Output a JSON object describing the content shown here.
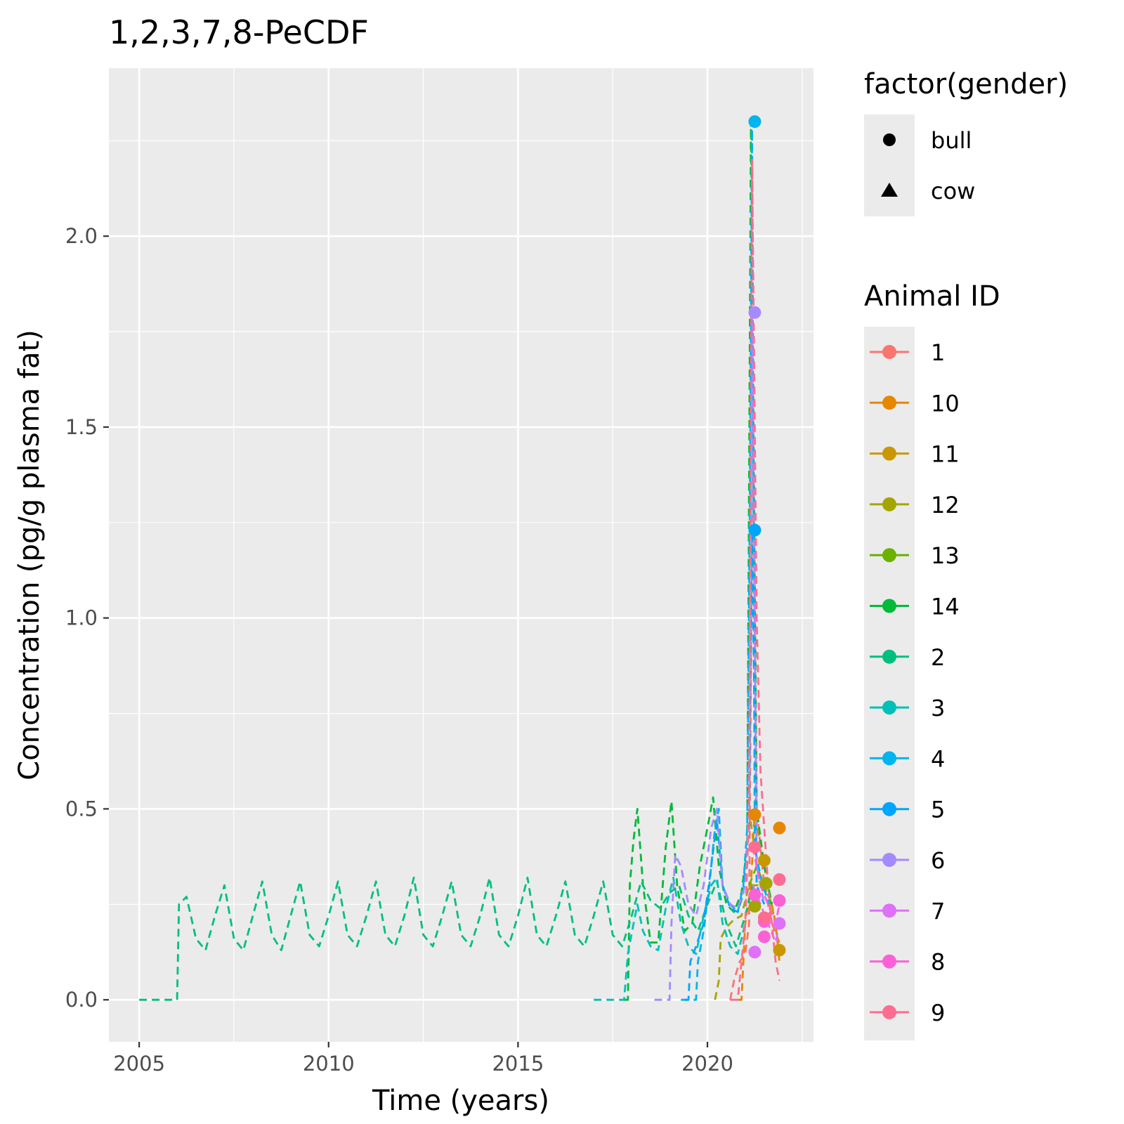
{
  "chart_data": {
    "type": "line",
    "title": "1,2,3,7,8-PeCDF",
    "xlabel": "Time (years)",
    "ylabel": "Concentration (pg/g plasma fat)",
    "xlim": [
      2004.2,
      2022.8
    ],
    "ylim": [
      -0.11,
      2.44
    ],
    "x_ticks": [
      2005,
      2010,
      2015,
      2020
    ],
    "y_ticks": [
      0.0,
      0.5,
      1.0,
      1.5,
      2.0
    ],
    "x_tick_labels": [
      "2005",
      "2010",
      "2015",
      "2020"
    ],
    "y_tick_labels": [
      "0.0",
      "0.5",
      "1.0",
      "1.5",
      "2.0"
    ],
    "grid": true,
    "legend_position": "right",
    "shape_legend": {
      "title": "factor(gender)",
      "items": [
        {
          "label": "bull",
          "shape": "circle"
        },
        {
          "label": "cow",
          "shape": "triangle"
        }
      ]
    },
    "series": [
      {
        "name": "1",
        "color": "#F8766D",
        "line": [
          [
            2020.6,
            0.0
          ],
          [
            2020.7,
            0.05
          ],
          [
            2020.85,
            0.1
          ],
          [
            2021.0,
            0.12
          ],
          [
            2021.1,
            0.2
          ],
          [
            2021.2,
            1.6
          ],
          [
            2021.3,
            0.5
          ],
          [
            2021.5,
            0.3
          ],
          [
            2021.7,
            0.2
          ],
          [
            2021.9,
            0.15
          ]
        ],
        "points": []
      },
      {
        "name": "10",
        "color": "#E58700",
        "line": [
          [
            2020.8,
            0.0
          ],
          [
            2020.9,
            0.0
          ],
          [
            2021.0,
            0.2
          ],
          [
            2021.15,
            0.3
          ],
          [
            2021.25,
            0.5
          ],
          [
            2021.4,
            0.4
          ],
          [
            2021.6,
            0.3
          ],
          [
            2021.8,
            0.2
          ],
          [
            2021.9,
            0.1
          ]
        ],
        "points": [
          [
            2021.25,
            0.485
          ],
          [
            2021.9,
            0.45
          ]
        ]
      },
      {
        "name": "11",
        "color": "#C99800",
        "line": [
          [
            2021.1,
            0.5
          ],
          [
            2021.3,
            0.35
          ],
          [
            2021.5,
            0.3
          ],
          [
            2021.7,
            0.25
          ],
          [
            2021.9,
            0.13
          ]
        ],
        "points": [
          [
            2021.5,
            0.365
          ],
          [
            2021.9,
            0.13
          ]
        ]
      },
      {
        "name": "12",
        "color": "#A3A500",
        "line": [
          [
            2020.2,
            0.0
          ],
          [
            2020.3,
            0.05
          ],
          [
            2020.35,
            0.16
          ],
          [
            2020.5,
            0.19
          ],
          [
            2020.7,
            0.21
          ],
          [
            2020.9,
            0.22
          ],
          [
            2021.1,
            0.3
          ],
          [
            2021.3,
            0.3
          ],
          [
            2021.5,
            0.3
          ],
          [
            2021.7,
            0.25
          ]
        ],
        "points": [
          [
            2021.25,
            0.245
          ],
          [
            2021.55,
            0.305
          ]
        ]
      },
      {
        "name": "13",
        "color": "#6BB100",
        "line": [
          [
            2021.1,
            0.3
          ],
          [
            2021.3,
            0.35
          ],
          [
            2021.5,
            0.3
          ],
          [
            2021.7,
            0.25
          ]
        ],
        "points": []
      },
      {
        "name": "14",
        "color": "#00BA38",
        "line": [
          [
            2017.8,
            0.0
          ],
          [
            2017.9,
            0.0
          ],
          [
            2017.95,
            0.3
          ],
          [
            2018.05,
            0.42
          ],
          [
            2018.15,
            0.5
          ],
          [
            2018.3,
            0.3
          ],
          [
            2018.5,
            0.15
          ],
          [
            2018.7,
            0.15
          ],
          [
            2018.9,
            0.4
          ],
          [
            2019.05,
            0.52
          ],
          [
            2019.2,
            0.3
          ],
          [
            2019.4,
            0.18
          ],
          [
            2019.6,
            0.2
          ],
          [
            2019.8,
            0.35
          ],
          [
            2020.0,
            0.45
          ],
          [
            2020.15,
            0.53
          ],
          [
            2020.3,
            0.35
          ],
          [
            2020.5,
            0.25
          ],
          [
            2020.7,
            0.23
          ],
          [
            2020.9,
            0.28
          ],
          [
            2021.05,
            0.4
          ],
          [
            2021.15,
            2.3
          ],
          [
            2021.3,
            0.5
          ],
          [
            2021.5,
            0.35
          ],
          [
            2021.7,
            0.25
          ]
        ],
        "points": []
      },
      {
        "name": "2",
        "color": "#00BF7D",
        "line": [
          [
            2005.0,
            0.0
          ],
          [
            2005.95,
            0.0
          ],
          [
            2006.0,
            0.0
          ],
          [
            2006.05,
            0.25
          ],
          [
            2006.25,
            0.27
          ],
          [
            2006.5,
            0.16
          ],
          [
            2006.75,
            0.13
          ],
          [
            2007.0,
            0.22
          ],
          [
            2007.25,
            0.3
          ],
          [
            2007.5,
            0.16
          ],
          [
            2007.75,
            0.13
          ],
          [
            2008.0,
            0.22
          ],
          [
            2008.25,
            0.31
          ],
          [
            2008.5,
            0.17
          ],
          [
            2008.75,
            0.13
          ],
          [
            2009.0,
            0.22
          ],
          [
            2009.25,
            0.31
          ],
          [
            2009.5,
            0.17
          ],
          [
            2009.75,
            0.14
          ],
          [
            2010.0,
            0.22
          ],
          [
            2010.25,
            0.31
          ],
          [
            2010.5,
            0.17
          ],
          [
            2010.75,
            0.14
          ],
          [
            2011.0,
            0.22
          ],
          [
            2011.25,
            0.31
          ],
          [
            2011.5,
            0.17
          ],
          [
            2011.75,
            0.14
          ],
          [
            2012.0,
            0.22
          ],
          [
            2012.25,
            0.32
          ],
          [
            2012.5,
            0.17
          ],
          [
            2012.75,
            0.14
          ],
          [
            2013.0,
            0.22
          ],
          [
            2013.25,
            0.31
          ],
          [
            2013.5,
            0.17
          ],
          [
            2013.75,
            0.14
          ],
          [
            2014.0,
            0.22
          ],
          [
            2014.25,
            0.32
          ],
          [
            2014.5,
            0.17
          ],
          [
            2014.75,
            0.14
          ],
          [
            2015.0,
            0.22
          ],
          [
            2015.25,
            0.32
          ],
          [
            2015.5,
            0.17
          ],
          [
            2015.75,
            0.14
          ],
          [
            2016.0,
            0.22
          ],
          [
            2016.25,
            0.31
          ],
          [
            2016.5,
            0.17
          ],
          [
            2016.75,
            0.14
          ],
          [
            2017.0,
            0.22
          ],
          [
            2017.25,
            0.31
          ],
          [
            2017.5,
            0.17
          ],
          [
            2017.75,
            0.14
          ],
          [
            2018.0,
            0.22
          ],
          [
            2018.25,
            0.31
          ],
          [
            2018.5,
            0.26
          ],
          [
            2018.75,
            0.24
          ],
          [
            2019.0,
            0.28
          ],
          [
            2019.25,
            0.3
          ],
          [
            2019.5,
            0.22
          ],
          [
            2019.75,
            0.18
          ],
          [
            2020.0,
            0.25
          ],
          [
            2020.25,
            0.31
          ],
          [
            2020.5,
            0.2
          ],
          [
            2020.75,
            0.14
          ],
          [
            2021.0,
            0.22
          ],
          [
            2021.2,
            0.3
          ]
        ],
        "points": []
      },
      {
        "name": "3",
        "color": "#00C0B8",
        "line": [
          [
            2017.0,
            0.0
          ],
          [
            2017.8,
            0.0
          ],
          [
            2017.9,
            0.12
          ],
          [
            2018.05,
            0.2
          ],
          [
            2018.15,
            0.25
          ],
          [
            2018.3,
            0.18
          ],
          [
            2018.5,
            0.14
          ],
          [
            2018.7,
            0.13
          ],
          [
            2018.9,
            0.24
          ],
          [
            2019.1,
            0.32
          ],
          [
            2019.3,
            0.2
          ],
          [
            2019.5,
            0.14
          ],
          [
            2019.7,
            0.12
          ],
          [
            2019.9,
            0.22
          ],
          [
            2020.1,
            0.3
          ],
          [
            2020.25,
            0.32
          ],
          [
            2020.4,
            0.2
          ],
          [
            2020.6,
            0.14
          ],
          [
            2020.8,
            0.12
          ],
          [
            2021.0,
            0.2
          ]
        ],
        "points": []
      },
      {
        "name": "4",
        "color": "#00B4EF",
        "line": [
          [
            2019.3,
            0.0
          ],
          [
            2019.7,
            0.0
          ],
          [
            2019.75,
            0.1
          ],
          [
            2019.9,
            0.18
          ],
          [
            2020.05,
            0.3
          ],
          [
            2020.2,
            0.45
          ],
          [
            2020.3,
            0.5
          ],
          [
            2020.4,
            0.3
          ],
          [
            2020.6,
            0.25
          ],
          [
            2020.8,
            0.23
          ],
          [
            2020.95,
            0.3
          ],
          [
            2021.05,
            0.45
          ],
          [
            2021.12,
            1.3
          ],
          [
            2021.18,
            2.28
          ],
          [
            2021.25,
            0.4
          ],
          [
            2021.45,
            0.3
          ],
          [
            2021.65,
            0.25
          ]
        ],
        "points": [
          [
            2021.25,
            2.3
          ]
        ]
      },
      {
        "name": "5",
        "color": "#00A5FF",
        "line": [
          [
            2019.4,
            0.0
          ],
          [
            2019.5,
            0.0
          ],
          [
            2019.55,
            0.1
          ],
          [
            2019.7,
            0.14
          ],
          [
            2019.9,
            0.2
          ],
          [
            2020.1,
            0.35
          ],
          [
            2020.25,
            0.47
          ],
          [
            2020.4,
            0.3
          ],
          [
            2020.6,
            0.24
          ],
          [
            2020.8,
            0.23
          ],
          [
            2020.95,
            0.28
          ],
          [
            2021.1,
            0.45
          ],
          [
            2021.18,
            1.23
          ],
          [
            2021.3,
            0.3
          ],
          [
            2021.5,
            0.25
          ]
        ],
        "points": [
          [
            2021.25,
            1.23
          ]
        ]
      },
      {
        "name": "6",
        "color": "#A58AFF",
        "line": [
          [
            2018.6,
            0.0
          ],
          [
            2019.0,
            0.0
          ],
          [
            2019.05,
            0.2
          ],
          [
            2019.15,
            0.38
          ],
          [
            2019.3,
            0.35
          ],
          [
            2019.5,
            0.25
          ],
          [
            2019.7,
            0.22
          ],
          [
            2019.9,
            0.3
          ],
          [
            2020.1,
            0.45
          ],
          [
            2020.25,
            0.5
          ],
          [
            2020.4,
            0.3
          ],
          [
            2020.6,
            0.25
          ],
          [
            2020.8,
            0.24
          ],
          [
            2021.0,
            0.3
          ],
          [
            2021.1,
            0.5
          ],
          [
            2021.18,
            1.8
          ],
          [
            2021.3,
            0.35
          ],
          [
            2021.5,
            0.25
          ]
        ],
        "points": [
          [
            2021.25,
            1.8
          ]
        ]
      },
      {
        "name": "7",
        "color": "#DF70F8",
        "line": [
          [
            2021.2,
            0.3
          ],
          [
            2021.4,
            0.25
          ],
          [
            2021.6,
            0.2
          ],
          [
            2021.8,
            0.15
          ],
          [
            2021.9,
            0.2
          ]
        ],
        "points": [
          [
            2021.25,
            0.125
          ],
          [
            2021.9,
            0.2
          ]
        ]
      },
      {
        "name": "8",
        "color": "#FB61D7",
        "line": [
          [
            2021.2,
            0.4
          ],
          [
            2021.4,
            0.3
          ],
          [
            2021.6,
            0.25
          ],
          [
            2021.8,
            0.2
          ],
          [
            2021.9,
            0.25
          ]
        ],
        "points": [
          [
            2021.25,
            0.275
          ],
          [
            2021.5,
            0.205
          ],
          [
            2021.5,
            0.165
          ],
          [
            2021.9,
            0.26
          ]
        ]
      },
      {
        "name": "9",
        "color": "#FF6C91",
        "line": [
          [
            2020.6,
            0.0
          ],
          [
            2020.8,
            0.0
          ],
          [
            2020.9,
            0.1
          ],
          [
            2021.0,
            0.2
          ],
          [
            2021.1,
            0.5
          ],
          [
            2021.18,
            2.2
          ],
          [
            2021.3,
            1.0
          ],
          [
            2021.4,
            0.6
          ],
          [
            2021.6,
            0.3
          ],
          [
            2021.8,
            0.1
          ],
          [
            2021.9,
            0.05
          ]
        ],
        "points": [
          [
            2021.25,
            0.4
          ],
          [
            2021.5,
            0.215
          ],
          [
            2021.9,
            0.315
          ]
        ]
      }
    ],
    "legend": {
      "title": "Animal ID",
      "items": [
        "1",
        "10",
        "11",
        "12",
        "13",
        "14",
        "2",
        "3",
        "4",
        "5",
        "6",
        "7",
        "8",
        "9"
      ]
    }
  }
}
